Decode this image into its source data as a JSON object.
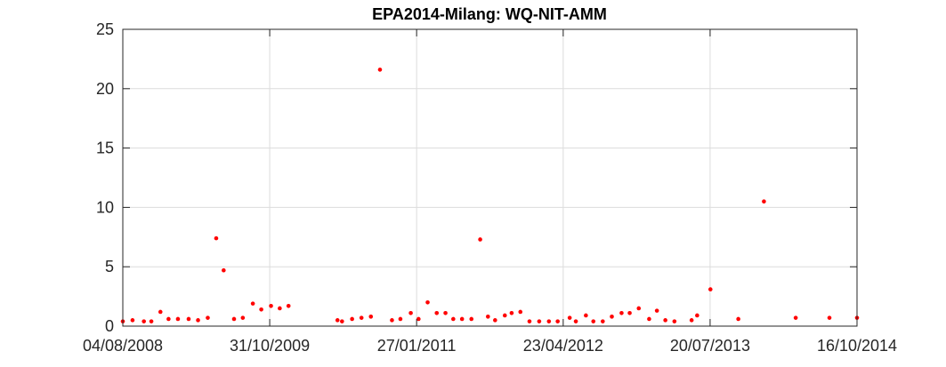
{
  "chart_data": {
    "type": "scatter",
    "title": "EPA2014-Milang: WQ-NIT-AMM",
    "xlabel": "",
    "ylabel": "",
    "xlim": [
      "04/08/2008",
      "16/10/2014"
    ],
    "ylim": [
      0,
      25
    ],
    "x_ticks": [
      "04/08/2008",
      "31/10/2009",
      "27/01/2011",
      "23/04/2012",
      "20/07/2013",
      "16/10/2014"
    ],
    "y_ticks": [
      "0",
      "5",
      "10",
      "15",
      "20",
      "25"
    ],
    "grid": true,
    "marker_color": "#ff0000",
    "series": [
      {
        "x": [
          "04/08/2008",
          "03/09/2008",
          "08/10/2008",
          "31/10/2008",
          "28/11/2008",
          "23/12/2008",
          "21/01/2009",
          "23/02/2009",
          "24/03/2009",
          "23/04/2009",
          "19/05/2009",
          "11/06/2009",
          "13/07/2009",
          "09/08/2009",
          "09/09/2009",
          "05/10/2009",
          "04/11/2009",
          "01/12/2009",
          "28/12/2009",
          "28/05/2010",
          "11/06/2010",
          "12/07/2010",
          "10/08/2010",
          "08/09/2010",
          "06/10/2010",
          "12/11/2010",
          "08/12/2010",
          "09/01/2011",
          "02/02/2011",
          "02/03/2011",
          "30/03/2011",
          "26/04/2011",
          "20/05/2011",
          "16/06/2011",
          "15/07/2011",
          "11/08/2011",
          "04/09/2011",
          "26/09/2011",
          "26/10/2011",
          "16/11/2011",
          "13/12/2011",
          "10/01/2012",
          "09/02/2012",
          "10/03/2012",
          "06/04/2012",
          "13/05/2012",
          "01/06/2012",
          "02/07/2012",
          "25/07/2012",
          "23/08/2012",
          "20/09/2012",
          "20/10/2012",
          "14/11/2012",
          "12/12/2012",
          "13/01/2013",
          "06/02/2013",
          "04/03/2013",
          "01/04/2013",
          "24/05/2013",
          "10/06/2013",
          "21/07/2013",
          "15/10/2013",
          "02/01/2014",
          "10/04/2014",
          "23/07/2014",
          "16/10/2014"
        ],
        "y": [
          0.4,
          0.5,
          0.4,
          0.4,
          1.2,
          0.6,
          0.6,
          0.6,
          0.5,
          0.7,
          7.4,
          4.7,
          0.6,
          0.7,
          1.9,
          1.4,
          1.7,
          1.5,
          1.7,
          0.5,
          0.4,
          0.6,
          0.7,
          0.8,
          21.6,
          0.5,
          0.6,
          1.1,
          0.6,
          2.0,
          1.1,
          1.1,
          0.6,
          0.6,
          0.6,
          7.3,
          0.8,
          0.5,
          0.9,
          1.1,
          1.2,
          0.4,
          0.4,
          0.4,
          0.4,
          0.7,
          0.4,
          0.9,
          0.4,
          0.4,
          0.8,
          1.1,
          1.1,
          1.5,
          0.6,
          1.3,
          0.5,
          0.4,
          0.5,
          0.9,
          3.1,
          0.6,
          10.5,
          0.7,
          0.7,
          0.7
        ]
      }
    ]
  }
}
